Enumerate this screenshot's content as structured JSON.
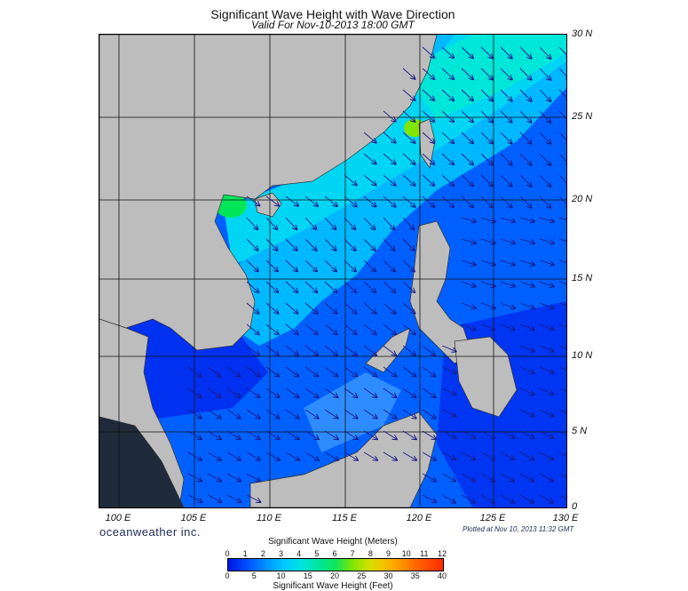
{
  "header": {
    "title": "Significant Wave Height with Wave Direction",
    "subtitle": "Valid For Nov-10-2013 18:00 GMT"
  },
  "map": {
    "land_color": "#bdbdbd",
    "grid": true,
    "lat_labels": [
      "30 N",
      "25 N",
      "20 N",
      "15 N",
      "10 N",
      "5 N",
      "0"
    ],
    "lon_labels": [
      "100 E",
      "105 E",
      "110 E",
      "115 E",
      "120 E",
      "125 E",
      "130 E"
    ],
    "wave_colors": {
      "deep": "#0016e6",
      "mid": "#0060ff",
      "light": "#00b8ff",
      "cyan": "#00e0e6",
      "green": "#00e658"
    },
    "arrow_color": "#1b1b8a"
  },
  "footer": {
    "brand": "oceanweather inc.",
    "plotted": "Plotted at Nov 10, 2013 11:32 GMT"
  },
  "colorbar": {
    "title_top": "Significant Wave Height (Meters)",
    "title_bottom": "Significant Wave Height (Feet)",
    "meters": [
      "0",
      "1",
      "2",
      "3",
      "4",
      "5",
      "6",
      "7",
      "8",
      "9",
      "10",
      "11",
      "12"
    ],
    "feet": [
      "0",
      "5",
      "10",
      "15",
      "20",
      "25",
      "30",
      "35",
      "40"
    ]
  }
}
